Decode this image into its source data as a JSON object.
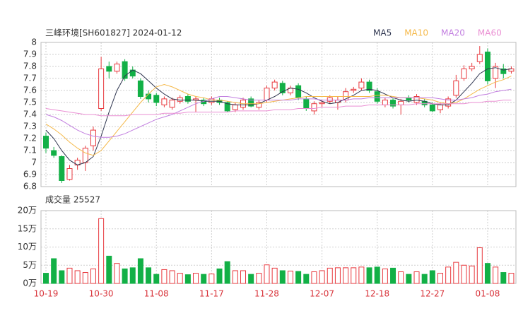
{
  "chart_data": [
    {
      "type": "candlestick",
      "title": "三峰环境[SH601827] 2024-01-12",
      "categories": [
        "10-19",
        null,
        null,
        null,
        null,
        null,
        null,
        "10-30",
        null,
        null,
        null,
        null,
        null,
        null,
        "11-08",
        null,
        null,
        null,
        null,
        null,
        null,
        "11-17",
        null,
        null,
        null,
        null,
        null,
        null,
        "11-28",
        null,
        null,
        null,
        null,
        null,
        null,
        "12-07",
        null,
        null,
        null,
        null,
        null,
        null,
        "12-18",
        null,
        null,
        null,
        null,
        null,
        null,
        "12-27",
        null,
        null,
        null,
        null,
        null,
        null,
        "01-08",
        null,
        null,
        null
      ],
      "open": [
        7.22,
        7.1,
        7.05,
        6.86,
        6.98,
        7.0,
        7.14,
        7.45,
        7.8,
        7.76,
        7.84,
        7.77,
        7.68,
        7.57,
        7.56,
        7.48,
        7.46,
        7.51,
        7.55,
        7.52,
        7.52,
        7.5,
        7.52,
        7.5,
        7.44,
        7.46,
        7.53,
        7.46,
        7.52,
        7.62,
        7.66,
        7.58,
        7.64,
        7.53,
        7.43,
        7.49,
        7.51,
        7.5,
        7.52,
        7.6,
        7.62,
        7.67,
        7.59,
        7.48,
        7.52,
        7.48,
        7.54,
        7.5,
        7.51,
        7.48,
        7.44,
        7.47,
        7.56,
        7.7,
        7.78,
        7.84,
        7.92,
        7.7,
        7.78,
        7.76
      ],
      "high": [
        7.25,
        7.13,
        7.06,
        6.98,
        7.04,
        7.14,
        7.3,
        7.88,
        7.84,
        7.84,
        7.86,
        7.8,
        7.7,
        7.6,
        7.58,
        7.55,
        7.54,
        7.56,
        7.57,
        7.55,
        7.54,
        7.55,
        7.54,
        7.51,
        7.5,
        7.54,
        7.55,
        7.52,
        7.64,
        7.69,
        7.68,
        7.64,
        7.66,
        7.55,
        7.51,
        7.52,
        7.56,
        7.55,
        7.62,
        7.63,
        7.7,
        7.69,
        7.62,
        7.54,
        7.54,
        7.53,
        7.56,
        7.57,
        7.53,
        7.5,
        7.5,
        7.55,
        7.73,
        7.81,
        7.83,
        7.97,
        7.95,
        7.83,
        7.82,
        7.8
      ],
      "low": [
        7.08,
        7.04,
        6.83,
        6.85,
        6.94,
        6.93,
        7.1,
        7.43,
        7.7,
        7.74,
        7.68,
        7.7,
        7.53,
        7.5,
        7.47,
        7.46,
        7.44,
        7.49,
        7.49,
        7.42,
        7.47,
        7.48,
        7.48,
        7.42,
        7.42,
        7.44,
        7.46,
        7.44,
        7.5,
        7.6,
        7.56,
        7.56,
        7.52,
        7.43,
        7.4,
        7.46,
        7.49,
        7.44,
        7.5,
        7.58,
        7.6,
        7.58,
        7.49,
        7.46,
        7.45,
        7.4,
        7.5,
        7.48,
        7.46,
        7.42,
        7.41,
        7.45,
        7.54,
        7.68,
        7.76,
        7.82,
        7.65,
        7.62,
        7.7,
        7.74
      ],
      "close": [
        7.12,
        7.06,
        6.85,
        6.95,
        7.02,
        7.12,
        7.27,
        7.78,
        7.76,
        7.82,
        7.7,
        7.72,
        7.55,
        7.53,
        7.5,
        7.53,
        7.52,
        7.54,
        7.51,
        7.53,
        7.49,
        7.53,
        7.5,
        7.43,
        7.48,
        7.52,
        7.47,
        7.5,
        7.62,
        7.67,
        7.58,
        7.62,
        7.54,
        7.45,
        7.49,
        7.5,
        7.54,
        7.52,
        7.59,
        7.61,
        7.67,
        7.6,
        7.51,
        7.52,
        7.47,
        7.51,
        7.52,
        7.55,
        7.48,
        7.43,
        7.48,
        7.53,
        7.68,
        7.78,
        7.8,
        7.9,
        7.68,
        7.8,
        7.74,
        7.78
      ],
      "up_color": "#e8383d",
      "down_color": "#12b046",
      "series": [
        {
          "name": "MA5",
          "color": "#2f3650",
          "values": [
            7.27,
            7.2,
            7.1,
            7.02,
            6.98,
            7.0,
            7.05,
            7.22,
            7.42,
            7.6,
            7.72,
            7.77,
            7.74,
            7.68,
            7.62,
            7.57,
            7.53,
            7.52,
            7.52,
            7.52,
            7.51,
            7.51,
            7.51,
            7.49,
            7.48,
            7.48,
            7.48,
            7.49,
            7.52,
            7.55,
            7.59,
            7.62,
            7.61,
            7.58,
            7.54,
            7.51,
            7.49,
            7.5,
            7.53,
            7.56,
            7.6,
            7.61,
            7.6,
            7.57,
            7.54,
            7.52,
            7.51,
            7.52,
            7.51,
            7.49,
            7.48,
            7.48,
            7.52,
            7.59,
            7.66,
            7.74,
            7.78,
            7.79,
            7.77,
            7.78
          ]
        },
        {
          "name": "MA10",
          "color": "#f5b94a",
          "values": [
            7.32,
            7.28,
            7.23,
            7.17,
            7.12,
            7.08,
            7.06,
            7.1,
            7.18,
            7.26,
            7.34,
            7.42,
            7.5,
            7.57,
            7.63,
            7.65,
            7.63,
            7.6,
            7.57,
            7.55,
            7.54,
            7.52,
            7.52,
            7.51,
            7.5,
            7.49,
            7.49,
            7.49,
            7.5,
            7.51,
            7.52,
            7.53,
            7.54,
            7.55,
            7.55,
            7.55,
            7.55,
            7.55,
            7.55,
            7.55,
            7.55,
            7.55,
            7.56,
            7.56,
            7.55,
            7.54,
            7.54,
            7.54,
            7.53,
            7.52,
            7.5,
            7.49,
            7.5,
            7.53,
            7.57,
            7.61,
            7.64,
            7.67,
            7.69,
            7.72
          ]
        },
        {
          "name": "MA20",
          "color": "#c27fe0",
          "values": [
            7.4,
            7.38,
            7.35,
            7.31,
            7.27,
            7.24,
            7.22,
            7.21,
            7.21,
            7.22,
            7.24,
            7.27,
            7.3,
            7.33,
            7.36,
            7.38,
            7.4,
            7.43,
            7.46,
            7.49,
            7.51,
            7.53,
            7.55,
            7.55,
            7.54,
            7.53,
            7.52,
            7.52,
            7.52,
            7.52,
            7.52,
            7.52,
            7.53,
            7.53,
            7.53,
            7.52,
            7.52,
            7.52,
            7.52,
            7.53,
            7.53,
            7.54,
            7.54,
            7.54,
            7.54,
            7.54,
            7.54,
            7.54,
            7.54,
            7.54,
            7.53,
            7.52,
            7.52,
            7.53,
            7.54,
            7.56,
            7.57,
            7.59,
            7.6,
            7.61
          ]
        },
        {
          "name": "MA60",
          "color": "#ea8fd3",
          "values": [
            7.45,
            7.44,
            7.43,
            7.42,
            7.41,
            7.4,
            7.4,
            7.39,
            7.39,
            7.39,
            7.39,
            7.4,
            7.4,
            7.4,
            7.4,
            7.41,
            7.41,
            7.41,
            7.42,
            7.42,
            7.42,
            7.42,
            7.42,
            7.42,
            7.43,
            7.43,
            7.43,
            7.43,
            7.43,
            7.44,
            7.44,
            7.44,
            7.45,
            7.45,
            7.45,
            7.46,
            7.46,
            7.46,
            7.47,
            7.47,
            7.47,
            7.48,
            7.48,
            7.48,
            7.48,
            7.48,
            7.48,
            7.49,
            7.49,
            7.49,
            7.49,
            7.49,
            7.49,
            7.49,
            7.5,
            7.5,
            7.51,
            7.51,
            7.52,
            7.52
          ]
        }
      ],
      "ylim": [
        6.8,
        8
      ],
      "yticks": [
        6.8,
        6.9,
        7,
        7.1,
        7.2,
        7.3,
        7.4,
        7.5,
        7.6,
        7.7,
        7.8,
        7.9,
        8
      ],
      "grid": true
    },
    {
      "type": "bar",
      "title": "成交量 25527",
      "values": [
        2.8,
        6.8,
        3.5,
        4.2,
        3.5,
        3.0,
        4.0,
        17.8,
        7.5,
        5.5,
        4.0,
        4.3,
        6.8,
        4.3,
        2.5,
        3.8,
        3.5,
        2.8,
        2.4,
        2.8,
        2.5,
        2.6,
        4.0,
        6.0,
        3.5,
        3.5,
        2.5,
        2.8,
        5.1,
        4.2,
        3.5,
        3.4,
        3.3,
        2.5,
        3.2,
        3.5,
        4.2,
        4.3,
        4.3,
        4.3,
        4.5,
        4.3,
        4.5,
        4.0,
        4.2,
        3.2,
        2.5,
        3.2,
        2.5,
        3.5,
        2.8,
        4.5,
        5.8,
        5.0,
        4.8,
        9.8,
        5.5,
        4.5,
        3.0,
        2.8
      ],
      "ylim": [
        0,
        20
      ],
      "yticks": [
        {
          "value": 0,
          "label": "0万"
        },
        {
          "value": 5,
          "label": "5万"
        },
        {
          "value": 10,
          "label": "10万"
        },
        {
          "value": 15,
          "label": "15万"
        },
        {
          "value": 20,
          "label": "20万"
        }
      ],
      "grid": true
    }
  ]
}
